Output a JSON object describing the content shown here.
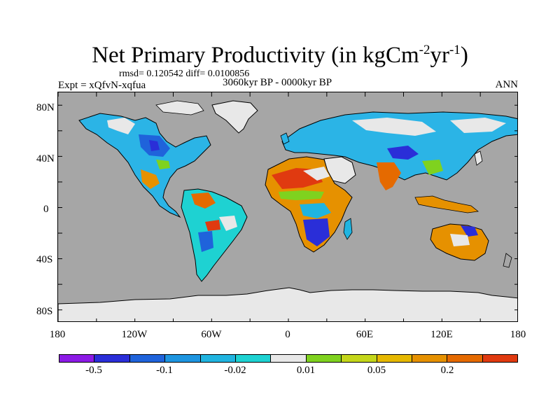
{
  "title": {
    "main": "Net Primary Productivity (in kgCm",
    "exp1": "-2",
    "mid": "yr",
    "exp2": "-1",
    "close": ")"
  },
  "stats": "rmsd= 0.120542 diff= 0.0100856",
  "experiment": "Expt = xQfvN-xqfua",
  "period": "3060kyr BP - 0000kyr BP",
  "season": "ANN",
  "lat_labels": [
    "80N",
    "40N",
    "0",
    "40S",
    "80S"
  ],
  "lon_labels": [
    "180",
    "120W",
    "60W",
    "0",
    "60E",
    "120E",
    "180"
  ],
  "colorbar": {
    "colors": [
      "#8c1ae6",
      "#2a2ed8",
      "#1f63db",
      "#1e95e0",
      "#20b4e0",
      "#1ed2d2",
      "#e8e8e8",
      "#7fd21f",
      "#c4d61a",
      "#e6b800",
      "#e69100",
      "#e56a00",
      "#e03a10"
    ],
    "labels": [
      "-0.5",
      "-0.1",
      "-0.02",
      "0.01",
      "0.05",
      "0.2"
    ]
  },
  "map_colors": {
    "ocean": "#a6a6a6",
    "ice": "#e8e8e8",
    "coast": "#000000"
  }
}
